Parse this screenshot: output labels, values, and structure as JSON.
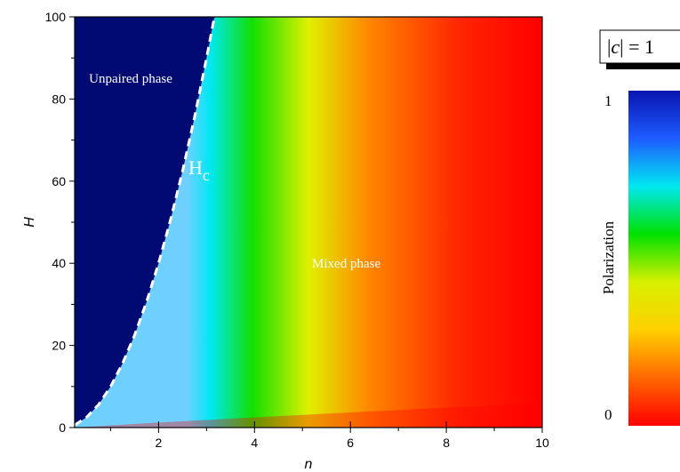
{
  "chart_data": {
    "type": "heatmap",
    "xlabel": "n",
    "ylabel": "H",
    "xlim": [
      0.25,
      10
    ],
    "ylim": [
      0,
      100
    ],
    "x_ticks": [
      2,
      4,
      6,
      8,
      10
    ],
    "y_ticks": [
      0,
      20,
      40,
      60,
      80,
      100
    ],
    "x_minor_ticks": [
      1,
      3,
      5,
      7,
      9
    ],
    "y_minor_ticks": [
      10,
      30,
      50,
      70,
      90
    ],
    "colorbar": {
      "label": "Polarization",
      "min_label": "0",
      "max_label": "1",
      "colors": [
        "#0a14b0",
        "#1e5cff",
        "#00e8f0",
        "#00e000",
        "#d8f000",
        "#ffd000",
        "#ff6800",
        "#ff0000"
      ]
    },
    "legend_box": {
      "prefix": "|",
      "var": "c",
      "suffix": "| = 1"
    },
    "critical_line": {
      "name_base": "H",
      "name_sub": "c",
      "style": "dashed",
      "color": "#ffffff",
      "n": [
        0.25,
        0.5,
        0.75,
        1.0,
        1.25,
        1.5,
        1.75,
        2.0,
        2.25,
        2.5,
        2.75,
        3.0,
        3.15
      ],
      "H": [
        0.6,
        2.5,
        5.6,
        10.0,
        15.6,
        22.5,
        30.6,
        40.0,
        50.6,
        62.5,
        75.6,
        90.0,
        99.2
      ]
    },
    "annotations": [
      {
        "text": "Unpaired phase",
        "n": 0.55,
        "H": 84
      },
      {
        "text": "Mixed phase",
        "n": 5.2,
        "H": 39
      }
    ],
    "colors": {
      "unpaired": "#000a72",
      "edge": "#6fd0ff",
      "cyan": "#00e8f2",
      "green": "#12df00",
      "yellow": "#e0f000",
      "orange": "#ff8600",
      "red": "#ff2600",
      "deep_red": "#ff0000"
    }
  }
}
